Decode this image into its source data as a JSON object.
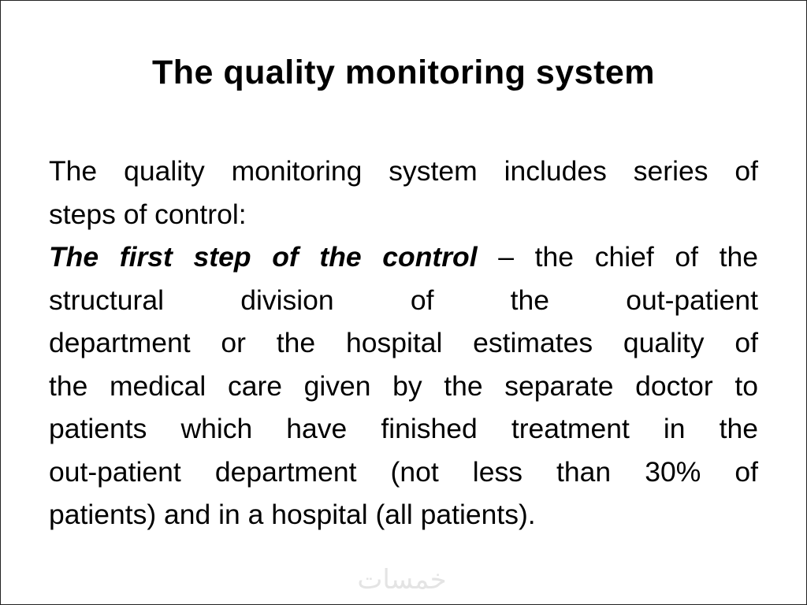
{
  "slide": {
    "title": "The quality monitoring system",
    "paragraph_lines": [
      "The quality monitoring system includes series of",
      "steps of control:",
      "",
      "structural division of the out-patient",
      "department or the hospital estimates quality of",
      "the medical care given by the separate doctor to",
      "patients which have finished treatment in the",
      "out-patient department (not less than 30% of",
      "patients) and in a hospital (all patients)."
    ],
    "emphasis_line": {
      "bold_italic": "The first step of the control",
      "rest": " – the chief of the"
    },
    "watermark": "خمسات"
  }
}
